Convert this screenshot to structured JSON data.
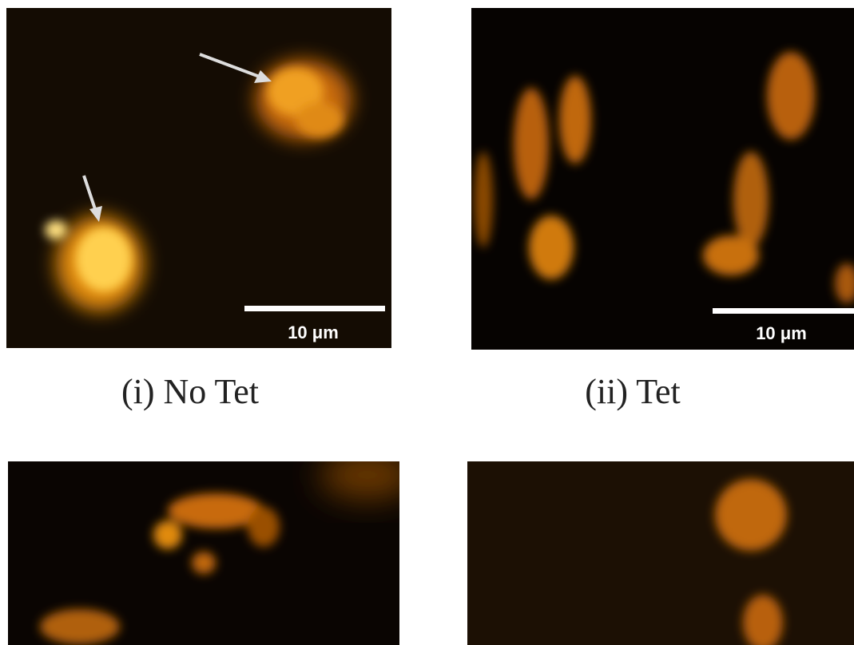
{
  "panels": [
    {
      "caption": "(i) No Tet",
      "scale_bar": "10 μm"
    },
    {
      "caption": "(ii) Tet",
      "scale_bar": "10 μm"
    }
  ]
}
